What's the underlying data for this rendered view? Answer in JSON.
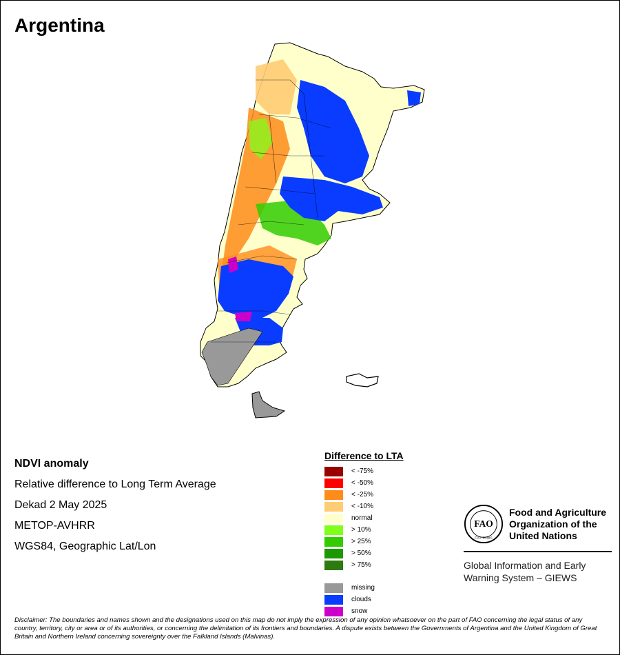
{
  "title": "Argentina",
  "info": {
    "heading": "NDVI anomaly",
    "line1": "Relative difference to Long Term Average",
    "line2": "Dekad 2 May 2025",
    "line3": "METOP-AVHRR",
    "line4": "WGS84, Geographic Lat/Lon"
  },
  "legend": {
    "title": "Difference to LTA",
    "items": [
      {
        "label": "< -75%",
        "color": "#990000"
      },
      {
        "label": "< -50%",
        "color": "#ff0000"
      },
      {
        "label": "< -25%",
        "color": "#ff8c1a"
      },
      {
        "label": "< -10%",
        "color": "#ffcc73"
      },
      {
        "label": "normal",
        "color": "#ffffcc"
      },
      {
        "label": "> 10%",
        "color": "#80ff1a"
      },
      {
        "label": "> 25%",
        "color": "#33cc00"
      },
      {
        "label": "> 50%",
        "color": "#1a9900"
      },
      {
        "label": "> 75%",
        "color": "#2d7a0f"
      }
    ],
    "extra": [
      {
        "label": "missing",
        "color": "#999999"
      },
      {
        "label": "clouds",
        "color": "#0a3cff"
      },
      {
        "label": "snow",
        "color": "#cc00cc"
      }
    ]
  },
  "fao": {
    "logo_letters": "FAO",
    "logo_motto": "FIAT PANIS",
    "name_line1": "Food and Agriculture",
    "name_line2": "Organization of the",
    "name_line3": "United Nations",
    "giews_line1": "Global Information and Early",
    "giews_line2": "Warning System – GIEWS"
  },
  "disclaimer": "Disclaimer: The boundaries and names shown and the designations used on this map do not imply the expression of any opinion whatsoever on the part of FAO concerning the legal status of any country, territory, city or area or of its authorities, or concerning the delimitation of its frontiers and boundaries. A dispute exists between the Governments of Argentina and the United Kingdom of Great Britain and Northern Ireland concerning sovereignty over the Falkland Islands (Malvinas)."
}
